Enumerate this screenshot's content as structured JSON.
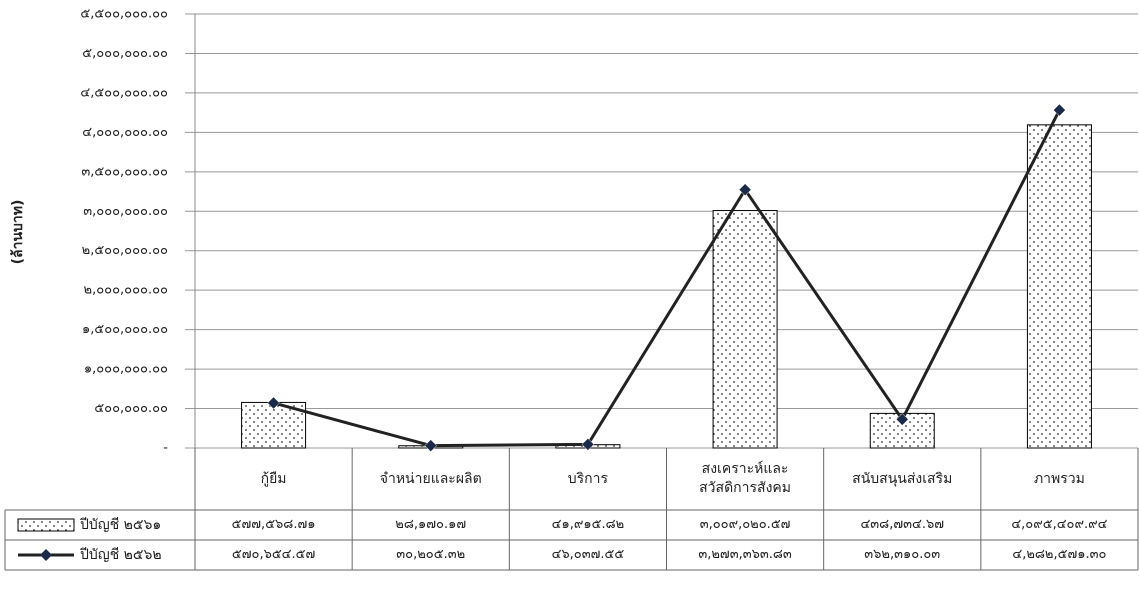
{
  "chart_data": {
    "type": "bar",
    "y_label": "(ล้านบาท)",
    "categories": [
      "กู้ยืม",
      "จำหน่ายและผลิต",
      "บริการ",
      "สงเคราะห์และสวัสดิการสังคม",
      "สนับสนุนส่งเสริม",
      "ภาพรวม"
    ],
    "series": [
      {
        "name": "ปีบัญชี ๒๕๖๑",
        "type": "bar",
        "color": "#000000",
        "values": [
          577568.71,
          28170.17,
          41915.82,
          3009020.57,
          438734.67,
          4095409.94
        ],
        "value_labels": [
          "๕๗๗,๕๖๘.๗๑",
          "๒๘,๑๗๐.๑๗",
          "๔๑,๙๑๕.๘๒",
          "๓,๐๐๙,๐๒๐.๕๗",
          "๔๓๘,๗๓๔.๖๗",
          "๔,๐๙๕,๔๐๙.๙๔"
        ]
      },
      {
        "name": "ปีบัญชี ๒๕๖๒",
        "type": "line",
        "color": "#222222",
        "marker_color": "#1c2a4a",
        "values": [
          570654.57,
          30205.32,
          46037.55,
          3273363.83,
          362310.03,
          4282571.3
        ],
        "value_labels": [
          "๕๗๐,๖๕๔.๕๗",
          "๓๐,๒๐๕.๓๒",
          "๔๖,๐๓๗.๕๕",
          "๓,๒๗๓,๓๖๓.๘๓",
          "๓๖๒,๓๑๐.๐๓",
          "๔,๒๘๒,๕๗๑.๓๐"
        ]
      }
    ],
    "ylim": [
      0,
      5500000
    ],
    "yticks": [
      {
        "value": 0,
        "label": "-"
      },
      {
        "value": 500000,
        "label": "๕๐๐,๐๐๐.๐๐"
      },
      {
        "value": 1000000,
        "label": "๑,๐๐๐,๐๐๐.๐๐"
      },
      {
        "value": 1500000,
        "label": "๑,๕๐๐,๐๐๐.๐๐"
      },
      {
        "value": 2000000,
        "label": "๒,๐๐๐,๐๐๐.๐๐"
      },
      {
        "value": 2500000,
        "label": "๒,๕๐๐,๐๐๐.๐๐"
      },
      {
        "value": 3000000,
        "label": "๓,๐๐๐,๐๐๐.๐๐"
      },
      {
        "value": 3500000,
        "label": "๓,๕๐๐,๐๐๐.๐๐"
      },
      {
        "value": 4000000,
        "label": "๔,๐๐๐,๐๐๐.๐๐"
      },
      {
        "value": 4500000,
        "label": "๔,๕๐๐,๐๐๐.๐๐"
      },
      {
        "value": 5000000,
        "label": "๕,๐๐๐,๐๐๐.๐๐"
      },
      {
        "value": 5500000,
        "label": "๕,๕๐๐,๐๐๐.๐๐"
      }
    ],
    "grid": true,
    "data_table": true
  }
}
